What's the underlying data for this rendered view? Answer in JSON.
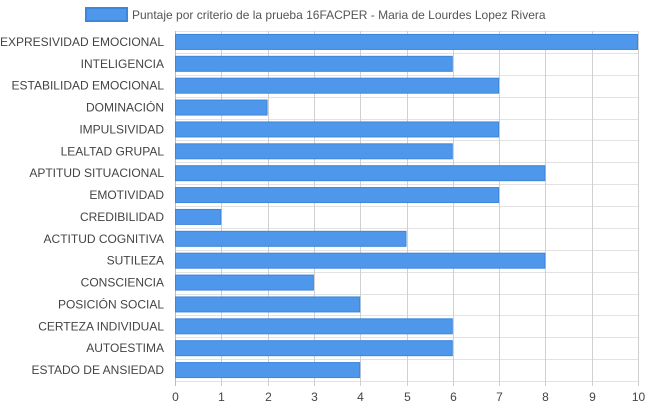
{
  "legend": {
    "label": "Puntaje por criterio de la prueba 16FACPER - Maria de Lourdes Lopez Rivera"
  },
  "colors": {
    "bar": "#4e97ea",
    "bar_border": "#3d86dc",
    "grid": "#e2e2e2",
    "axis": "#bbbbbb",
    "text": "#444444"
  },
  "chart_data": {
    "type": "bar",
    "orientation": "horizontal",
    "categories": [
      "EXPRESIVIDAD EMOCIONAL",
      "INTELIGENCIA",
      "ESTABILIDAD EMOCIONAL",
      "DOMINACIÓN",
      "IMPULSIVIDAD",
      "LEALTAD GRUPAL",
      "APTITUD SITUACIONAL",
      "EMOTIVIDAD",
      "CREDIBILIDAD",
      "ACTITUD COGNITIVA",
      "SUTILEZA",
      "CONSCIENCIA",
      "POSICIÓN SOCIAL",
      "CERTEZA INDIVIDUAL",
      "AUTOESTIMA",
      "ESTADO DE ANSIEDAD"
    ],
    "series": [
      {
        "name": "Puntaje por criterio de la prueba 16FACPER - Maria de Lourdes Lopez Rivera",
        "values": [
          10,
          6,
          7,
          2,
          7,
          6,
          8,
          7,
          1,
          5,
          8,
          3,
          4,
          6,
          6,
          4
        ]
      }
    ],
    "x_ticks": [
      "0",
      "1",
      "2",
      "3",
      "4",
      "5",
      "6",
      "7",
      "8",
      "9",
      "10"
    ],
    "xlim": [
      0,
      10
    ],
    "grid": true,
    "legend_position": "top"
  }
}
